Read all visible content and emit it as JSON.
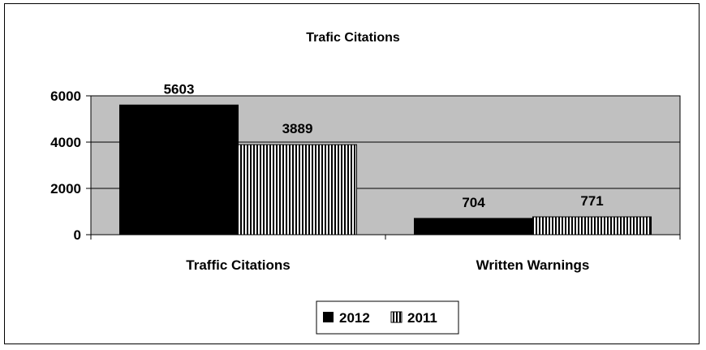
{
  "chart_data": {
    "type": "bar",
    "title": "Trafic Citations",
    "categories": [
      "Traffic Citations",
      "Written Warnings"
    ],
    "series": [
      {
        "name": "2012",
        "values": [
          5603,
          704
        ],
        "color": "#000000",
        "pattern": "solid"
      },
      {
        "name": "2011",
        "values": [
          3889,
          771
        ],
        "color": "#000000",
        "pattern": "vertical-stripes"
      }
    ],
    "ylim": [
      0,
      6000
    ],
    "yticks": [
      "0",
      "2000",
      "4000",
      "6000"
    ],
    "grid": true,
    "plot_background": "#c0c0c0",
    "legend_position": "bottom"
  }
}
